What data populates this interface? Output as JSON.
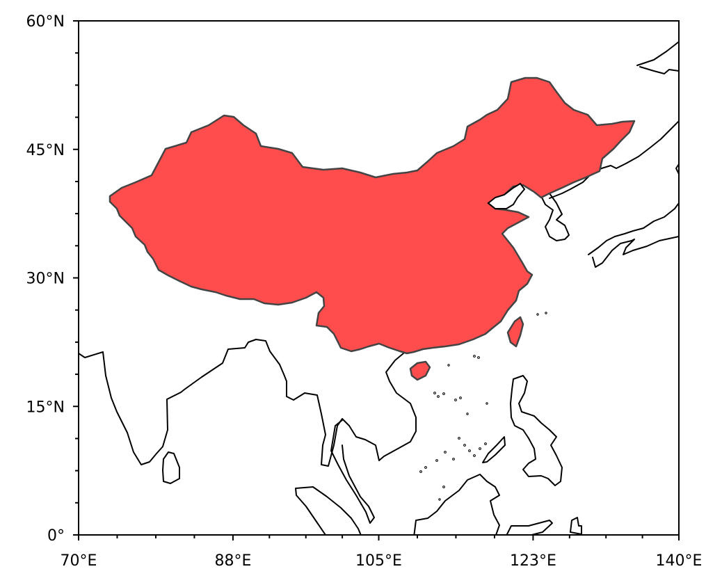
{
  "map": {
    "projection": "PlateCarree",
    "extent": {
      "lon_min": 70,
      "lon_max": 140,
      "lat_min": 0,
      "lat_max": 60
    },
    "highlighted_region": {
      "name": "China",
      "color": "#ff4d4d"
    },
    "coastline_color": "#000000",
    "x_ticks": [
      {
        "value": 70,
        "label": "70°E"
      },
      {
        "value": 88,
        "label": "88°E"
      },
      {
        "value": 105,
        "label": "105°E"
      },
      {
        "value": 123,
        "label": "123°E"
      },
      {
        "value": 140,
        "label": "140°E"
      }
    ],
    "y_ticks": [
      {
        "value": 0,
        "label": "0°"
      },
      {
        "value": 15,
        "label": "15°N"
      },
      {
        "value": 30,
        "label": "30°N"
      },
      {
        "value": 45,
        "label": "45°N"
      },
      {
        "value": 60,
        "label": "60°N"
      }
    ],
    "minor_ticks": true
  }
}
